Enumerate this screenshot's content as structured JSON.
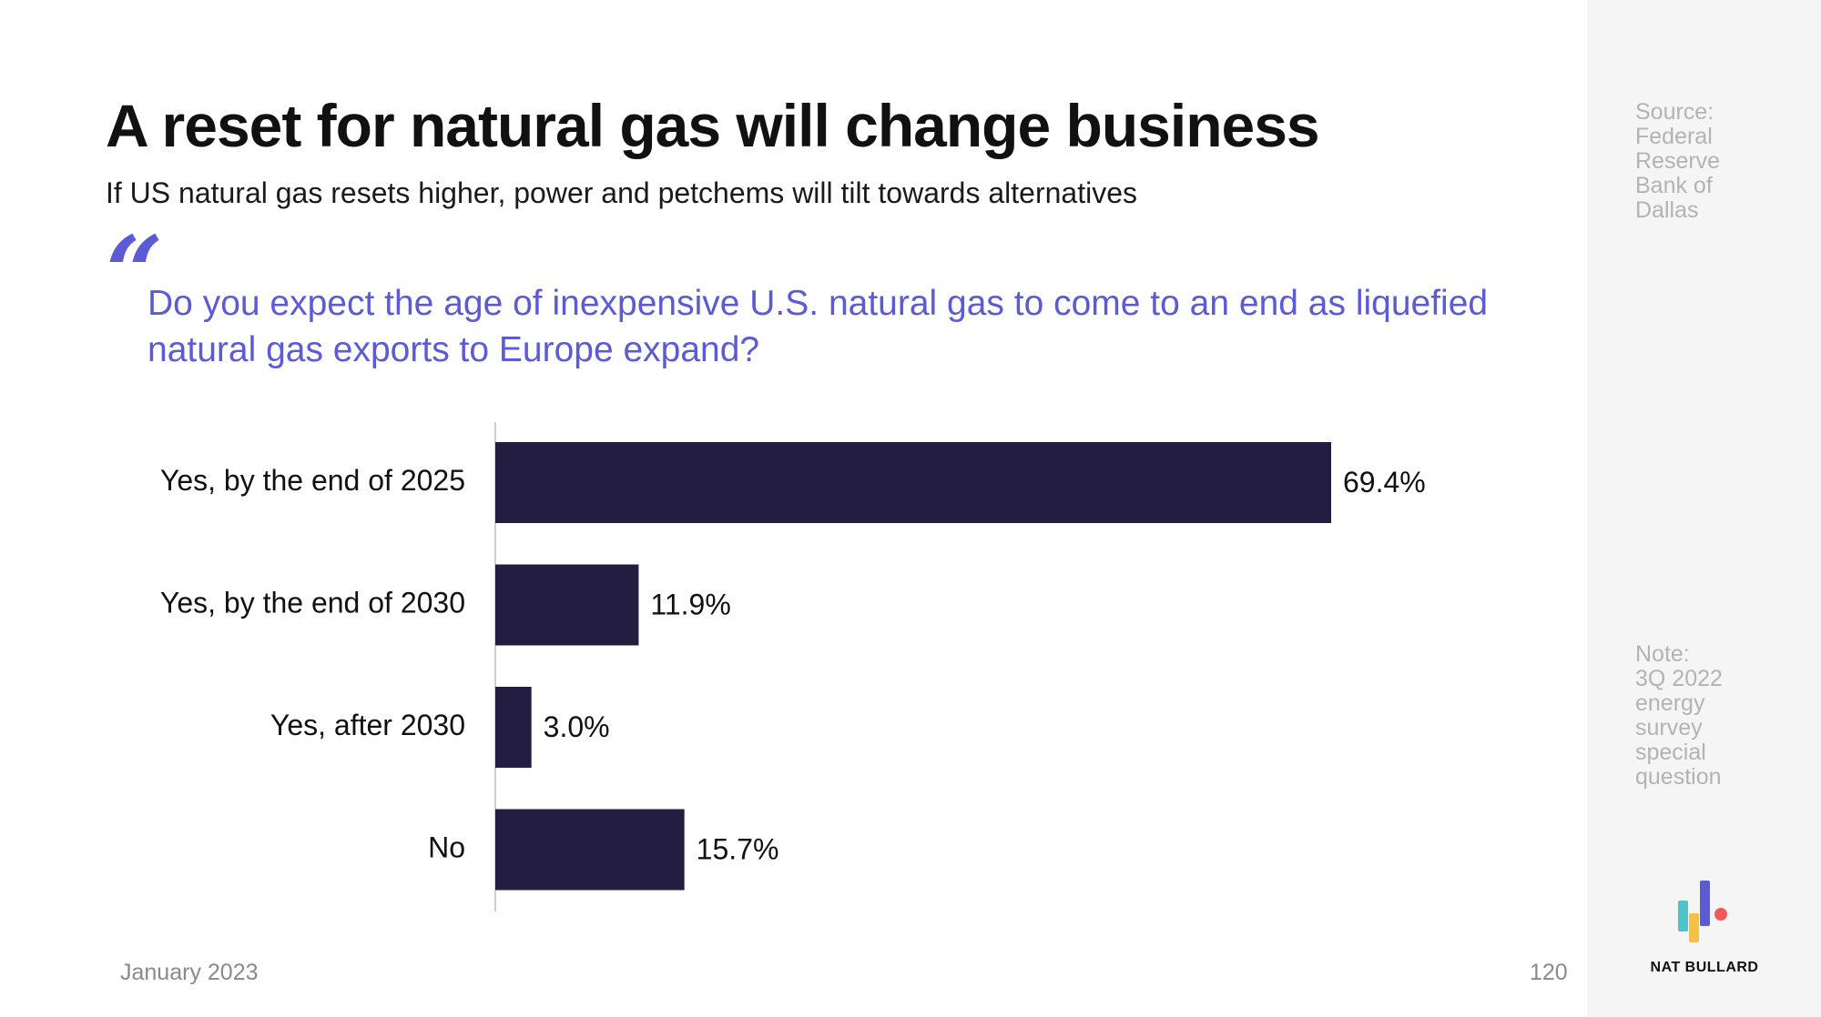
{
  "slide": {
    "title": "A reset for natural gas will change business",
    "subtitle": "If US natural gas resets higher, power and petchems will tilt towards alternatives",
    "quote_mark": "“",
    "question": "Do you expect the age of inexpensive U.S. natural gas to come to an end as liquefied natural gas exports to Europe expand?"
  },
  "sidebar": {
    "source_lines": [
      "Source:",
      "Federal",
      "Reserve",
      "Bank of",
      "Dallas"
    ],
    "note_lines": [
      "Note:",
      "3Q 2022",
      "energy",
      "survey",
      "special",
      "question"
    ],
    "brand": "NAT BULLARD"
  },
  "footer": {
    "date": "January 2023",
    "page": "120"
  },
  "colors": {
    "bar": "#231e41",
    "accent": "#5b5bd6",
    "logo_teal": "#4fc3c8",
    "logo_yellow": "#f5c142",
    "logo_purple": "#5b5bd6",
    "logo_red": "#f05a5a"
  },
  "chart_data": {
    "type": "bar",
    "orientation": "horizontal",
    "title": "",
    "xlabel": "",
    "ylabel": "",
    "xlim": [
      0,
      69.4
    ],
    "grid": false,
    "categories": [
      "Yes, by the end of 2025",
      "Yes, by the end of 2030",
      "Yes, after 2030",
      "No"
    ],
    "values": [
      69.4,
      11.9,
      3.0,
      15.7
    ],
    "labels": [
      "69.4%",
      "11.9%",
      "3.0%",
      "15.7%"
    ],
    "unit": "%"
  }
}
